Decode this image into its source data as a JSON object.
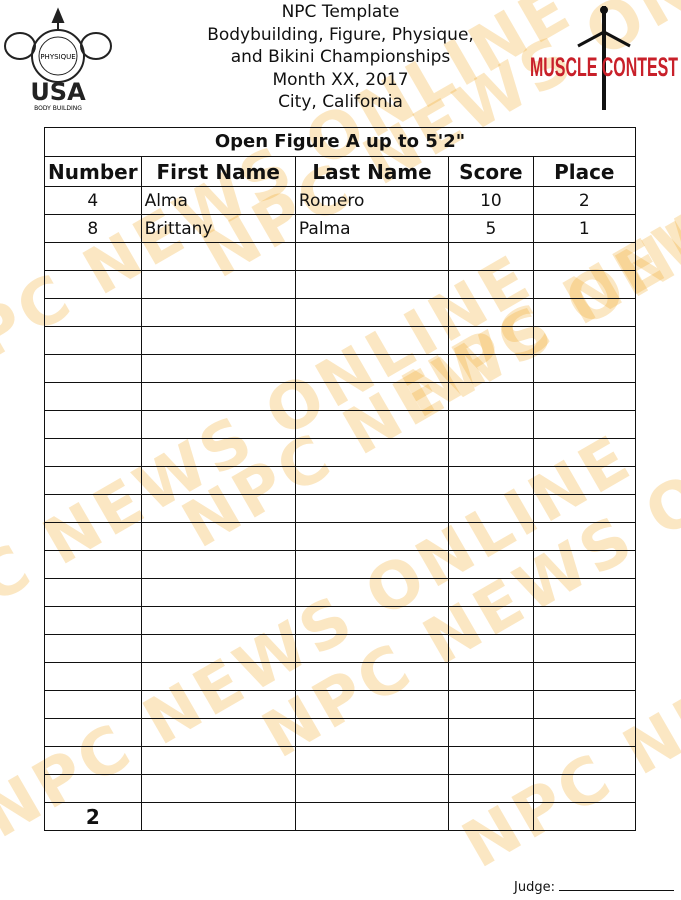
{
  "header": {
    "lines": [
      "NPC Template",
      "Bodybuilding, Figure, Physique,",
      "and Bikini Championships",
      "Month XX, 2017",
      "City, California"
    ]
  },
  "logos": {
    "left": {
      "text_top": "NATIONAL PHYSIQUE COMMITTEE",
      "text_main": "USA",
      "text_sub": "BODY BUILDING"
    },
    "right": {
      "text": "MUSCLE CONTEST",
      "color": "#c8202a"
    }
  },
  "watermark": "NPC NEWS ONLINE",
  "table": {
    "title": "Open Figure A up to 5'2\"",
    "columns": [
      "Number",
      "First Name",
      "Last Name",
      "Score",
      "Place"
    ],
    "rows": [
      [
        "4",
        "Alma",
        "Romero",
        "10",
        "2"
      ],
      [
        "8",
        "Brittany",
        "Palma",
        "5",
        "1"
      ]
    ],
    "empty_rows": 21,
    "count": "2"
  },
  "footer": {
    "judge_label": "Judge:"
  }
}
